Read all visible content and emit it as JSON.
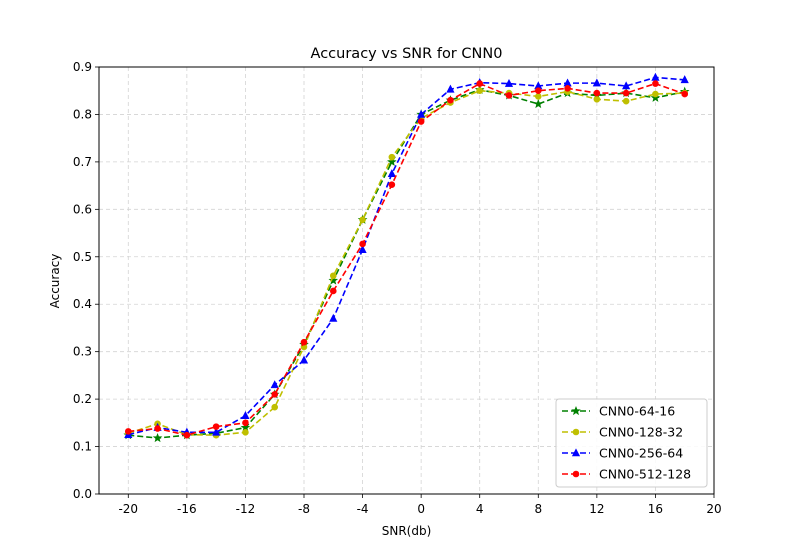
{
  "chart_data": {
    "type": "line",
    "title": "Accuracy vs SNR for CNN0",
    "xlabel": "SNR(db)",
    "ylabel": "Accuracy",
    "xlim": [
      -22,
      20
    ],
    "ylim": [
      0.0,
      0.9
    ],
    "xticks": [
      -20,
      -16,
      -12,
      -8,
      -4,
      0,
      4,
      8,
      12,
      16,
      20
    ],
    "xtick_labels": [
      "-20",
      "-16",
      "-12",
      "-8",
      "-4",
      "0",
      "4",
      "8",
      "12",
      "16",
      "20"
    ],
    "yticks": [
      0.0,
      0.1,
      0.2,
      0.3,
      0.4,
      0.5,
      0.6,
      0.7,
      0.8,
      0.9
    ],
    "ytick_labels": [
      "0.0",
      "0.1",
      "0.2",
      "0.3",
      "0.4",
      "0.5",
      "0.6",
      "0.7",
      "0.8",
      "0.9"
    ],
    "grid": true,
    "legend_position": "bottom-right",
    "x": [
      -20,
      -18,
      -16,
      -14,
      -12,
      -10,
      -8,
      -6,
      -4,
      -2,
      0,
      2,
      4,
      6,
      8,
      10,
      12,
      14,
      16,
      18
    ],
    "series": [
      {
        "name": "CNN0-64-16",
        "color": "#008000",
        "marker": "star",
        "values": [
          0.124,
          0.118,
          0.124,
          0.128,
          0.14,
          0.21,
          0.315,
          0.45,
          0.578,
          0.7,
          0.8,
          0.83,
          0.852,
          0.84,
          0.822,
          0.845,
          0.84,
          0.845,
          0.835,
          0.848
        ]
      },
      {
        "name": "CNN0-128-32",
        "color": "#bfbf00",
        "marker": "circle",
        "values": [
          0.128,
          0.148,
          0.125,
          0.124,
          0.13,
          0.183,
          0.31,
          0.46,
          0.578,
          0.71,
          0.792,
          0.825,
          0.85,
          0.845,
          0.838,
          0.848,
          0.832,
          0.828,
          0.843,
          0.845
        ]
      },
      {
        "name": "CNN0-256-64",
        "color": "#0000ff",
        "marker": "triangle",
        "values": [
          0.125,
          0.14,
          0.13,
          0.13,
          0.165,
          0.23,
          0.282,
          0.37,
          0.515,
          0.675,
          0.8,
          0.853,
          0.867,
          0.865,
          0.86,
          0.866,
          0.866,
          0.86,
          0.878,
          0.873
        ]
      },
      {
        "name": "CNN0-512-128",
        "color": "#ff0000",
        "marker": "circle",
        "values": [
          0.132,
          0.138,
          0.124,
          0.142,
          0.15,
          0.21,
          0.32,
          0.428,
          0.527,
          0.652,
          0.785,
          0.83,
          0.865,
          0.84,
          0.85,
          0.855,
          0.845,
          0.845,
          0.865,
          0.843
        ]
      }
    ]
  }
}
